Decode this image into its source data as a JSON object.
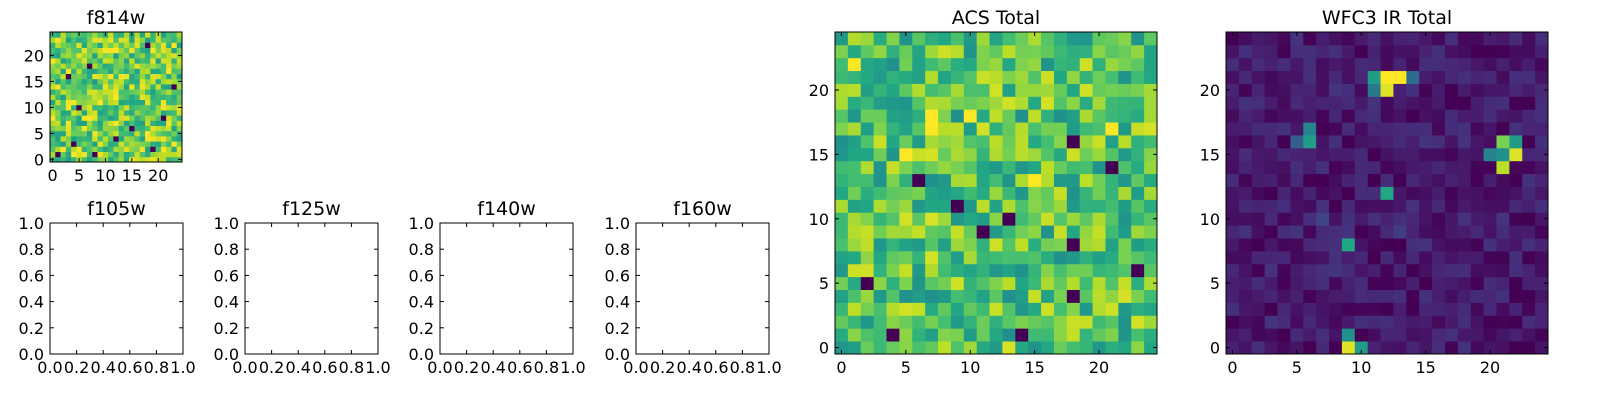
{
  "chart_data": [
    {
      "id": "f814w",
      "type": "heatmap",
      "title": "f814w",
      "colormap": "viridis",
      "grid_size": 25,
      "xticks": [
        "0",
        "5",
        "10",
        "15",
        "20"
      ],
      "yticks": [
        "0",
        "5",
        "10",
        "15",
        "20"
      ],
      "xlim": [
        -0.5,
        24.5
      ],
      "ylim": [
        -0.5,
        24.5
      ],
      "value_range": [
        0,
        1
      ],
      "texture": "noise",
      "background_level": 0.78,
      "noise_amplitude": 0.22,
      "dark_pixels": [
        [
          1,
          1
        ],
        [
          4,
          3
        ],
        [
          8,
          1
        ],
        [
          3,
          16
        ],
        [
          7,
          18
        ],
        [
          18,
          22
        ],
        [
          21,
          8
        ],
        [
          23,
          14
        ],
        [
          12,
          4
        ],
        [
          15,
          6
        ],
        [
          5,
          10
        ],
        [
          19,
          2
        ]
      ],
      "sources": []
    },
    {
      "id": "f105w",
      "type": "heatmap",
      "title": "f105w",
      "empty": true,
      "xticks": [
        "0.0",
        "0.2",
        "0.4",
        "0.6",
        "0.8",
        "1.0"
      ],
      "yticks": [
        "0.0",
        "0.2",
        "0.4",
        "0.6",
        "0.8",
        "1.0"
      ],
      "xlim": [
        0,
        1
      ],
      "ylim": [
        0,
        1
      ]
    },
    {
      "id": "f125w",
      "type": "heatmap",
      "title": "f125w",
      "empty": true,
      "xticks": [
        "0.0",
        "0.2",
        "0.4",
        "0.6",
        "0.8",
        "1.0"
      ],
      "yticks": [
        "0.0",
        "0.2",
        "0.4",
        "0.6",
        "0.8",
        "1.0"
      ],
      "xlim": [
        0,
        1
      ],
      "ylim": [
        0,
        1
      ]
    },
    {
      "id": "f140w",
      "type": "heatmap",
      "title": "f140w",
      "empty": true,
      "xticks": [
        "0.0",
        "0.2",
        "0.4",
        "0.6",
        "0.8",
        "1.0"
      ],
      "yticks": [
        "0.0",
        "0.2",
        "0.4",
        "0.6",
        "0.8",
        "1.0"
      ],
      "xlim": [
        0,
        1
      ],
      "ylim": [
        0,
        1
      ]
    },
    {
      "id": "f160w",
      "type": "heatmap",
      "title": "f160w",
      "empty": true,
      "xticks": [
        "0.0",
        "0.2",
        "0.4",
        "0.6",
        "0.8",
        "1.0"
      ],
      "yticks": [
        "0.0",
        "0.2",
        "0.4",
        "0.6",
        "0.8",
        "1.0"
      ],
      "xlim": [
        0,
        1
      ],
      "ylim": [
        0,
        1
      ]
    },
    {
      "id": "acs_total",
      "type": "heatmap",
      "title": "ACS Total",
      "colormap": "viridis",
      "grid_size": 25,
      "xticks": [
        "0",
        "5",
        "10",
        "15",
        "20"
      ],
      "yticks": [
        "0",
        "5",
        "10",
        "15",
        "20"
      ],
      "xlim": [
        -0.5,
        24.5
      ],
      "ylim": [
        -0.5,
        24.5
      ],
      "value_range": [
        0,
        1
      ],
      "texture": "noise",
      "background_level": 0.72,
      "noise_amplitude": 0.22,
      "dark_pixels": [
        [
          9,
          11
        ],
        [
          11,
          9
        ],
        [
          14,
          1
        ],
        [
          18,
          16
        ],
        [
          18,
          8
        ],
        [
          23,
          6
        ],
        [
          4,
          1
        ],
        [
          18,
          4
        ],
        [
          6,
          13
        ],
        [
          21,
          14
        ],
        [
          13,
          10
        ],
        [
          2,
          5
        ]
      ],
      "bright_pixels": [
        [
          7,
          18
        ],
        [
          7,
          17
        ],
        [
          5,
          15
        ],
        [
          21,
          17
        ],
        [
          10,
          18
        ],
        [
          1,
          22
        ],
        [
          15,
          13
        ]
      ],
      "sources": []
    },
    {
      "id": "wfc3_ir_total",
      "type": "heatmap",
      "title": "WFC3 IR Total",
      "colormap": "viridis",
      "grid_size": 25,
      "xticks": [
        "0",
        "5",
        "10",
        "15",
        "20"
      ],
      "yticks": [
        "0",
        "5",
        "10",
        "15",
        "20"
      ],
      "xlim": [
        -0.5,
        24.5
      ],
      "ylim": [
        -0.5,
        24.5
      ],
      "value_range": [
        0,
        1
      ],
      "texture": "noise",
      "background_level": 0.07,
      "noise_amplitude": 0.08,
      "dark_pixels": [],
      "sources": [
        {
          "x": 12,
          "y": 21,
          "level": 1.0
        },
        {
          "x": 13,
          "y": 21,
          "level": 1.0
        },
        {
          "x": 12,
          "y": 20,
          "level": 0.95
        },
        {
          "x": 11,
          "y": 21,
          "level": 0.55
        },
        {
          "x": 11,
          "y": 20,
          "level": 0.4
        },
        {
          "x": 14,
          "y": 21,
          "level": 0.35
        },
        {
          "x": 22,
          "y": 15,
          "level": 0.95
        },
        {
          "x": 21,
          "y": 16,
          "level": 0.8
        },
        {
          "x": 21,
          "y": 14,
          "level": 0.9
        },
        {
          "x": 22,
          "y": 16,
          "level": 0.55
        },
        {
          "x": 20,
          "y": 15,
          "level": 0.45
        },
        {
          "x": 21,
          "y": 15,
          "level": 0.5
        },
        {
          "x": 6,
          "y": 16,
          "level": 0.55
        },
        {
          "x": 6,
          "y": 17,
          "level": 0.45
        },
        {
          "x": 5,
          "y": 16,
          "level": 0.3
        },
        {
          "x": 12,
          "y": 12,
          "level": 0.6
        },
        {
          "x": 9,
          "y": 8,
          "level": 0.6
        },
        {
          "x": 9,
          "y": 0,
          "level": 0.95
        },
        {
          "x": 10,
          "y": 0,
          "level": 0.55
        },
        {
          "x": 9,
          "y": 1,
          "level": 0.5
        },
        {
          "x": 7,
          "y": 10,
          "level": 0.2
        },
        {
          "x": 13,
          "y": 9,
          "level": 0.18
        }
      ]
    }
  ]
}
